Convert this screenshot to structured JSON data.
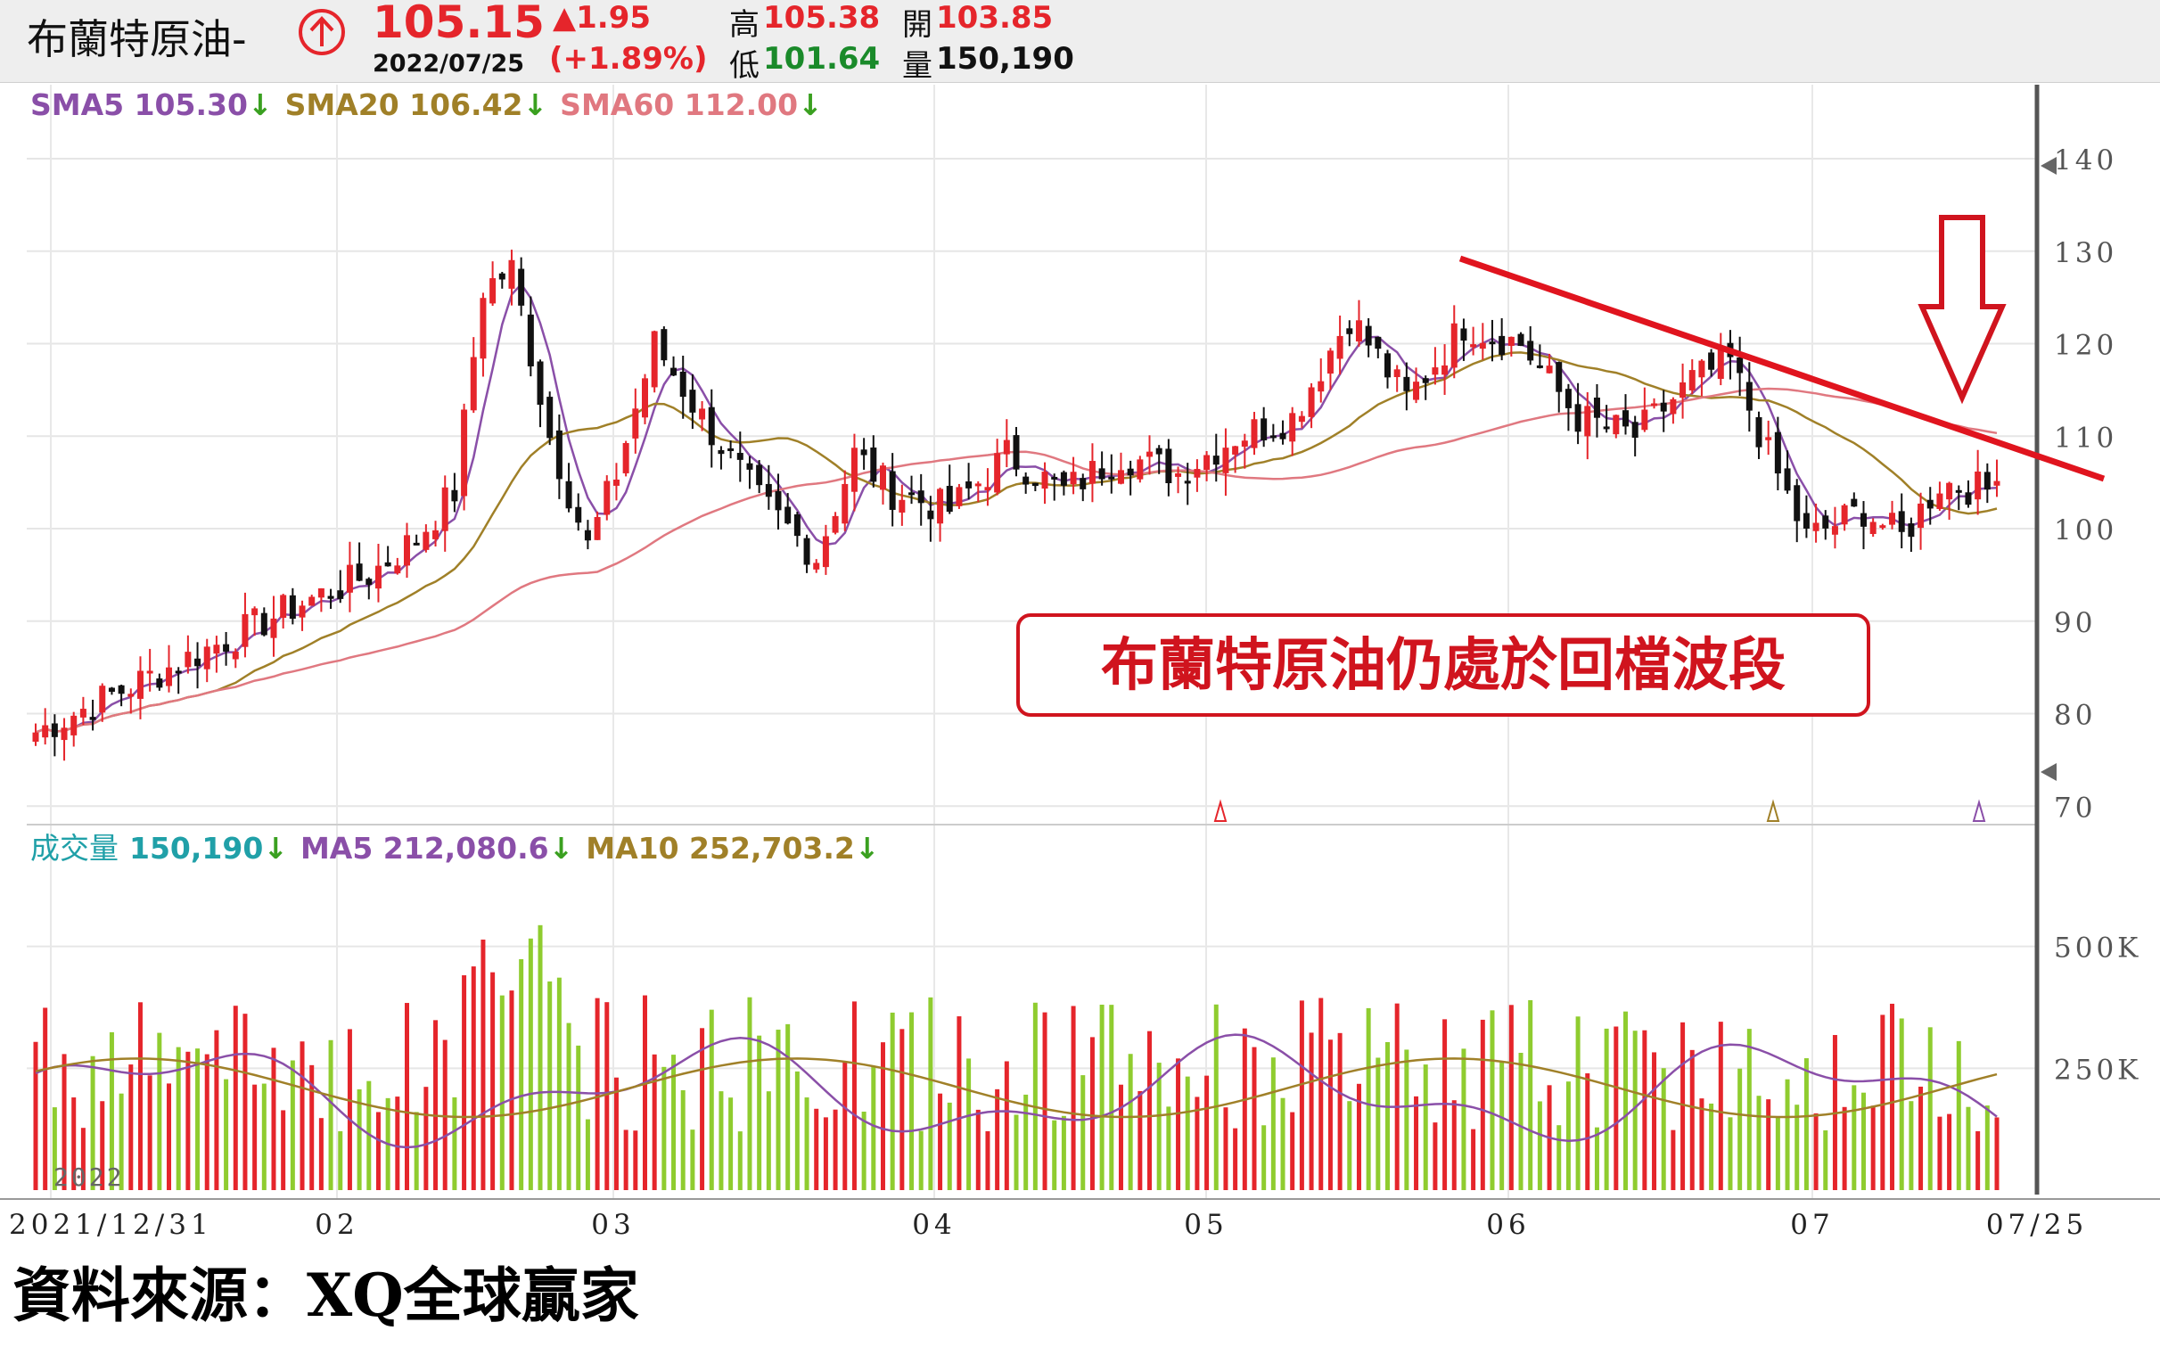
{
  "header": {
    "name": "布蘭特原油-",
    "price": "105.15",
    "date": "2022/07/25",
    "change": "▲1.95",
    "change_pct": "(+1.89%)",
    "high_label": "高",
    "high_value": "105.38",
    "low_label": "低",
    "low_value": "101.64",
    "open_label": "開",
    "open_value": "103.85",
    "vol_label": "量",
    "vol_value": "150,190"
  },
  "legend": {
    "sma5": "SMA5 105.30",
    "sma20": "SMA20 106.42",
    "sma60": "SMA60 112.00",
    "arrow": "↓",
    "vol_title": "成交量",
    "vol_value": "150,190",
    "vol_ma5": "MA5 212,080.6",
    "vol_ma10": "MA10 252,703.2"
  },
  "colors": {
    "up": "#e5252b",
    "down": "#111111",
    "vol_up": "#e5252b",
    "vol_down": "#8fcc2f",
    "sma5": "#8a4fa8",
    "sma20": "#a08028",
    "sma60": "#e07880",
    "trend": "#e0141e",
    "annotation": "#d0141e"
  },
  "annotation": {
    "text": "布蘭特原油仍處於回檔波段"
  },
  "source": "資料來源：XQ全球贏家",
  "chart_data": {
    "type": "candlestick",
    "x_labels": [
      "2021/12/31",
      "02",
      "03",
      "04",
      "05",
      "06",
      "07",
      "07/25"
    ],
    "year_mark": "2022",
    "price_axis": {
      "ticks": [
        "140",
        "130",
        "120",
        "110",
        "100",
        "90",
        "80",
        "70"
      ],
      "range": [
        68,
        148
      ]
    },
    "volume_axis": {
      "ticks": [
        "500K",
        "250K"
      ],
      "range": [
        0,
        750000
      ]
    },
    "trend_line": {
      "from": [
        "2022-06",
        129
      ],
      "to": [
        "2022-07-25",
        107
      ]
    },
    "monthly_approx": [
      {
        "month": "2021/12",
        "close": 78
      },
      {
        "month": "2022/01",
        "close": 90
      },
      {
        "month": "2022/02",
        "close": 101
      },
      {
        "month": "2022/03",
        "close": 105
      },
      {
        "month": "2022/04",
        "close": 107
      },
      {
        "month": "2022/05",
        "close": 117
      },
      {
        "month": "2022/06",
        "close": 112
      },
      {
        "month": "2022/07/25",
        "close": 105.15
      }
    ]
  }
}
